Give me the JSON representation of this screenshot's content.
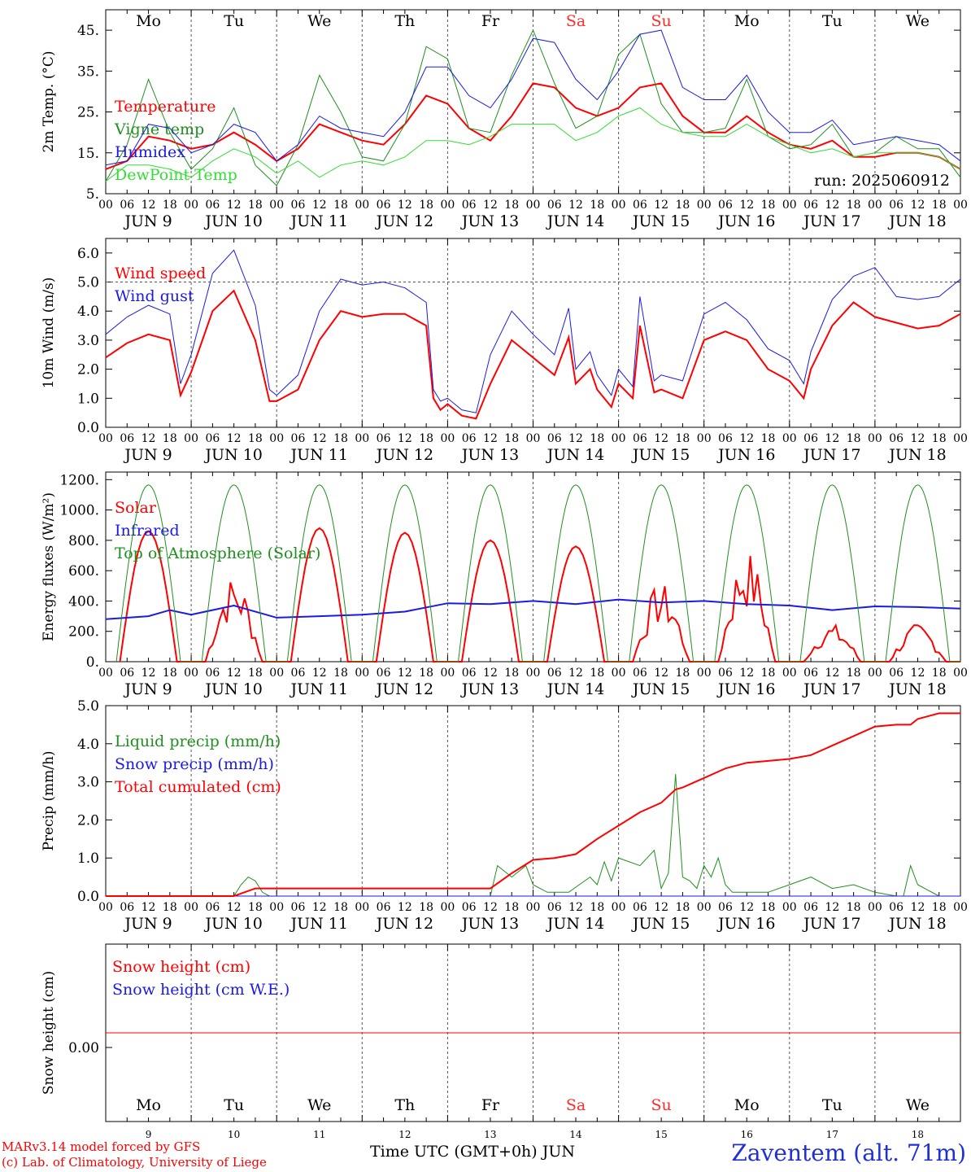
{
  "days": {
    "labels": [
      "Mo",
      "Tu",
      "We",
      "Th",
      "Fr",
      "Sa",
      "Su",
      "Mo",
      "Tu",
      "We"
    ],
    "dates": [
      "JUN 9",
      "JUN 10",
      "JUN 11",
      "JUN 12",
      "JUN 13",
      "JUN 14",
      "JUN 15",
      "JUN 16",
      "JUN 17",
      "JUN 18"
    ],
    "day_numbers": [
      "9",
      "10",
      "11",
      "12",
      "13",
      "14",
      "15",
      "16",
      "17",
      "18"
    ],
    "weekend_color": "#ff2a2a",
    "weekend_index": [
      5,
      6
    ],
    "hour_ticks": [
      "00",
      "06",
      "12",
      "18"
    ],
    "end_tick": "00"
  },
  "run_label": "run: 2025060912",
  "footer": {
    "model": "MARv3.14 model forced by GFS",
    "credit": "(c) Lab. of Climatology, University of Liege",
    "axis_title": "Time UTC (GMT+0h) JUN",
    "station": "Zaventem (alt. 71m)"
  },
  "chart_data": [
    {
      "type": "line",
      "ylabel": "2m Temp. (°C)",
      "ylim": [
        5,
        50
      ],
      "yticks": [
        5,
        15,
        25,
        35,
        45
      ],
      "ytick_labels": [
        "5.",
        "15.",
        "25.",
        "35.",
        "45."
      ],
      "x_unit": "hours since JUN 9 00 UTC",
      "xlim": [
        0,
        240
      ],
      "grid": "vertical dashed at day boundaries",
      "series": [
        {
          "name": "Temperature",
          "color": "#ff0000",
          "width": 2,
          "x": [
            0,
            6,
            12,
            18,
            24,
            30,
            36,
            42,
            48,
            54,
            60,
            66,
            72,
            78,
            84,
            90,
            96,
            102,
            108,
            114,
            120,
            126,
            132,
            138,
            144,
            150,
            156,
            162,
            168,
            174,
            180,
            186,
            192,
            198,
            204,
            210,
            216,
            222,
            228,
            234,
            240
          ],
          "y": [
            11,
            13,
            19,
            18,
            16,
            17,
            20,
            17,
            13,
            16,
            22,
            20,
            18,
            17,
            22,
            29,
            27,
            21,
            18,
            24,
            32,
            31,
            26,
            24,
            26,
            31,
            32,
            24,
            20,
            20,
            24,
            20,
            17,
            16,
            18,
            14,
            14,
            15,
            15,
            14,
            11
          ]
        },
        {
          "name": "Vigne temp",
          "color": "#1f8f1f",
          "width": 1,
          "x": [
            0,
            6,
            12,
            18,
            24,
            30,
            36,
            42,
            48,
            54,
            60,
            66,
            72,
            78,
            84,
            90,
            96,
            102,
            108,
            114,
            120,
            126,
            132,
            138,
            144,
            150,
            156,
            162,
            168,
            174,
            180,
            186,
            192,
            198,
            204,
            210,
            216,
            222,
            228,
            234,
            240
          ],
          "y": [
            8,
            17,
            33,
            20,
            11,
            16,
            26,
            12,
            7,
            17,
            34,
            25,
            14,
            13,
            22,
            41,
            38,
            21,
            20,
            34,
            45,
            32,
            21,
            24,
            39,
            44,
            27,
            20,
            20,
            21,
            33,
            19,
            16,
            17,
            22,
            14,
            15,
            19,
            16,
            16,
            9
          ]
        },
        {
          "name": "Humidex",
          "color": "#1a1ae6",
          "width": 1,
          "x": [
            0,
            6,
            12,
            18,
            24,
            30,
            36,
            42,
            48,
            54,
            60,
            66,
            72,
            78,
            84,
            90,
            96,
            102,
            108,
            114,
            120,
            126,
            132,
            138,
            144,
            150,
            156,
            162,
            168,
            174,
            180,
            186,
            192,
            198,
            204,
            210,
            216,
            222,
            228,
            234,
            240
          ],
          "y": [
            12,
            13,
            22,
            21,
            15,
            17,
            22,
            20,
            13,
            17,
            24,
            21,
            20,
            19,
            25,
            36,
            36,
            29,
            26,
            33,
            43,
            42,
            33,
            28,
            35,
            44,
            45,
            31,
            28,
            28,
            34,
            25,
            20,
            20,
            23,
            17,
            18,
            19,
            18,
            17,
            13
          ]
        },
        {
          "name": "DewPoint Temp",
          "color": "#33dd33",
          "width": 1,
          "x": [
            0,
            6,
            12,
            18,
            24,
            30,
            36,
            42,
            48,
            54,
            60,
            66,
            72,
            78,
            84,
            90,
            96,
            102,
            108,
            114,
            120,
            126,
            132,
            138,
            144,
            150,
            156,
            162,
            168,
            174,
            180,
            186,
            192,
            198,
            204,
            210,
            216,
            222,
            228,
            234,
            240
          ],
          "y": [
            8,
            12,
            12,
            11,
            9,
            13,
            16,
            14,
            10,
            13,
            9,
            12,
            13,
            12,
            14,
            18,
            18,
            17,
            19,
            22,
            22,
            22,
            18,
            20,
            24,
            26,
            22,
            20,
            19,
            19,
            22,
            19,
            17,
            15,
            16,
            14,
            15,
            15,
            15,
            14,
            11
          ]
        }
      ]
    },
    {
      "type": "line",
      "ylabel": "10m Wind (m/s)",
      "ylim": [
        0,
        6.5
      ],
      "yticks": [
        0,
        1,
        2,
        3,
        4,
        5,
        6
      ],
      "ytick_labels": [
        "0.0",
        "1.0",
        "2.0",
        "3.0",
        "4.0",
        "5.0",
        "6.0"
      ],
      "reference_line": 5.0,
      "xlim": [
        0,
        240
      ],
      "series": [
        {
          "name": "Wind speed",
          "color": "#ff0000",
          "width": 2,
          "x": [
            0,
            6,
            12,
            18,
            21,
            24,
            30,
            36,
            42,
            46,
            48,
            54,
            60,
            66,
            72,
            78,
            84,
            90,
            92,
            94,
            96,
            100,
            104,
            108,
            114,
            120,
            126,
            130,
            132,
            136,
            138,
            142,
            144,
            148,
            150,
            154,
            156,
            162,
            168,
            174,
            180,
            186,
            192,
            196,
            198,
            204,
            210,
            216,
            222,
            228,
            234,
            240
          ],
          "y": [
            2.4,
            2.9,
            3.2,
            3.0,
            1.1,
            1.9,
            4.0,
            4.7,
            3.0,
            0.9,
            0.9,
            1.3,
            3.0,
            4.0,
            3.8,
            3.9,
            3.9,
            3.5,
            1.0,
            0.6,
            0.8,
            0.4,
            0.3,
            1.5,
            3.0,
            2.4,
            1.8,
            3.1,
            1.5,
            2.0,
            1.3,
            0.7,
            1.5,
            1.0,
            3.5,
            1.2,
            1.3,
            1.0,
            3.0,
            3.3,
            3.0,
            2.0,
            1.6,
            1.0,
            2.0,
            3.5,
            4.3,
            3.8,
            3.6,
            3.4,
            3.5,
            3.9
          ]
        },
        {
          "name": "Wind gust",
          "color": "#1a1ae6",
          "width": 1,
          "x": [
            0,
            6,
            12,
            18,
            21,
            24,
            30,
            36,
            42,
            46,
            48,
            54,
            60,
            66,
            72,
            78,
            84,
            90,
            92,
            94,
            96,
            100,
            104,
            108,
            114,
            120,
            126,
            130,
            132,
            136,
            138,
            142,
            144,
            148,
            150,
            154,
            156,
            162,
            168,
            174,
            180,
            186,
            192,
            196,
            198,
            204,
            210,
            216,
            222,
            228,
            234,
            240
          ],
          "y": [
            3.2,
            3.8,
            4.2,
            3.9,
            1.5,
            2.5,
            5.3,
            6.1,
            4.2,
            1.3,
            1.1,
            1.8,
            4.0,
            5.1,
            4.9,
            5.0,
            4.8,
            4.3,
            1.3,
            0.9,
            1.0,
            0.6,
            0.5,
            2.5,
            4.0,
            3.2,
            2.5,
            4.1,
            2.0,
            2.6,
            1.8,
            1.1,
            2.0,
            1.4,
            4.5,
            1.6,
            1.8,
            1.6,
            3.9,
            4.3,
            3.7,
            2.7,
            2.3,
            1.5,
            2.6,
            4.4,
            5.2,
            5.5,
            4.5,
            4.4,
            4.5,
            5.1
          ]
        }
      ]
    },
    {
      "type": "line",
      "ylabel": "Energy fluxes (W/m²)",
      "ylim": [
        0,
        1250
      ],
      "yticks": [
        0,
        200,
        400,
        600,
        800,
        1000,
        1200
      ],
      "ytick_labels": [
        "0.",
        "200.",
        "400.",
        "600.",
        "800.",
        "1000.",
        "1200."
      ],
      "xlim": [
        0,
        240
      ],
      "solar_peaks": [
        860,
        570,
        880,
        850,
        800,
        760,
        520,
        740,
        250,
        250
      ],
      "toa_peak": 1165,
      "series": [
        {
          "name": "Solar",
          "color": "#ff0000",
          "width": 2
        },
        {
          "name": "Infrared",
          "color": "#1a1ae6",
          "width": 2,
          "x": [
            0,
            12,
            18,
            24,
            36,
            48,
            60,
            72,
            84,
            96,
            108,
            120,
            132,
            144,
            156,
            168,
            180,
            192,
            204,
            216,
            228,
            240
          ],
          "y": [
            280,
            300,
            340,
            310,
            370,
            290,
            300,
            310,
            330,
            385,
            380,
            400,
            380,
            410,
            390,
            400,
            380,
            370,
            340,
            365,
            360,
            350
          ]
        },
        {
          "name": "Top of Atmosphere (Solar)",
          "color": "#1f8f1f",
          "width": 1
        }
      ]
    },
    {
      "type": "line",
      "ylabel": "Precip (mm/h)",
      "ylim": [
        0,
        5
      ],
      "yticks": [
        0,
        1,
        2,
        3,
        4,
        5
      ],
      "ytick_labels": [
        "0.0",
        "1.0",
        "2.0",
        "3.0",
        "4.0",
        "5.0"
      ],
      "xlim": [
        0,
        240
      ],
      "series": [
        {
          "name": "Liquid precip (mm/h)",
          "color": "#1f8f1f",
          "width": 1,
          "x": [
            0,
            36,
            38,
            40,
            42,
            44,
            46,
            48,
            96,
            108,
            110,
            114,
            118,
            120,
            124,
            130,
            136,
            138,
            140,
            142,
            144,
            150,
            154,
            156,
            158,
            160,
            162,
            164,
            166,
            168,
            170,
            172,
            174,
            176,
            178,
            180,
            186,
            192,
            198,
            204,
            210,
            216,
            222,
            224,
            226,
            228,
            234,
            240
          ],
          "y": [
            0,
            0,
            0.3,
            0.5,
            0.4,
            0.1,
            0,
            0,
            0,
            0,
            0.8,
            0.5,
            0.8,
            0.3,
            0.1,
            0.1,
            0.5,
            0.3,
            0.9,
            0.4,
            1.0,
            0.8,
            1.2,
            0.2,
            0.6,
            3.2,
            0.5,
            0.4,
            0.2,
            0.8,
            0.5,
            1.0,
            0.3,
            0.1,
            0.1,
            0.1,
            0.1,
            0.3,
            0.5,
            0.2,
            0.3,
            0.1,
            0.0,
            0.0,
            0.8,
            0.3,
            0.0,
            0.0
          ]
        },
        {
          "name": "Snow precip (mm/h)",
          "color": "#1a1ae6",
          "width": 1
        },
        {
          "name": "Total cumulated (cm)",
          "color": "#ff0000",
          "width": 2,
          "x": [
            0,
            36,
            42,
            96,
            108,
            114,
            120,
            126,
            132,
            138,
            144,
            150,
            156,
            160,
            162,
            168,
            174,
            180,
            192,
            198,
            204,
            210,
            216,
            222,
            226,
            228,
            234,
            240
          ],
          "y": [
            0,
            0,
            0.2,
            0.2,
            0.2,
            0.6,
            0.95,
            1.0,
            1.1,
            1.5,
            1.85,
            2.2,
            2.45,
            2.8,
            2.85,
            3.1,
            3.35,
            3.5,
            3.6,
            3.7,
            3.95,
            4.2,
            4.45,
            4.5,
            4.5,
            4.65,
            4.8,
            4.8
          ]
        }
      ]
    },
    {
      "type": "line",
      "ylabel": "Snow height (cm)",
      "ytick_labels": [
        "0.00"
      ],
      "xlim": [
        0,
        240
      ],
      "series": [
        {
          "name": "Snow height (cm)",
          "color": "#ff0000",
          "width": 1,
          "x": [
            0,
            240
          ],
          "y": [
            0,
            0
          ]
        },
        {
          "name": "Snow height (cm W.E.)",
          "color": "#1a1ae6",
          "width": 1
        }
      ]
    }
  ]
}
